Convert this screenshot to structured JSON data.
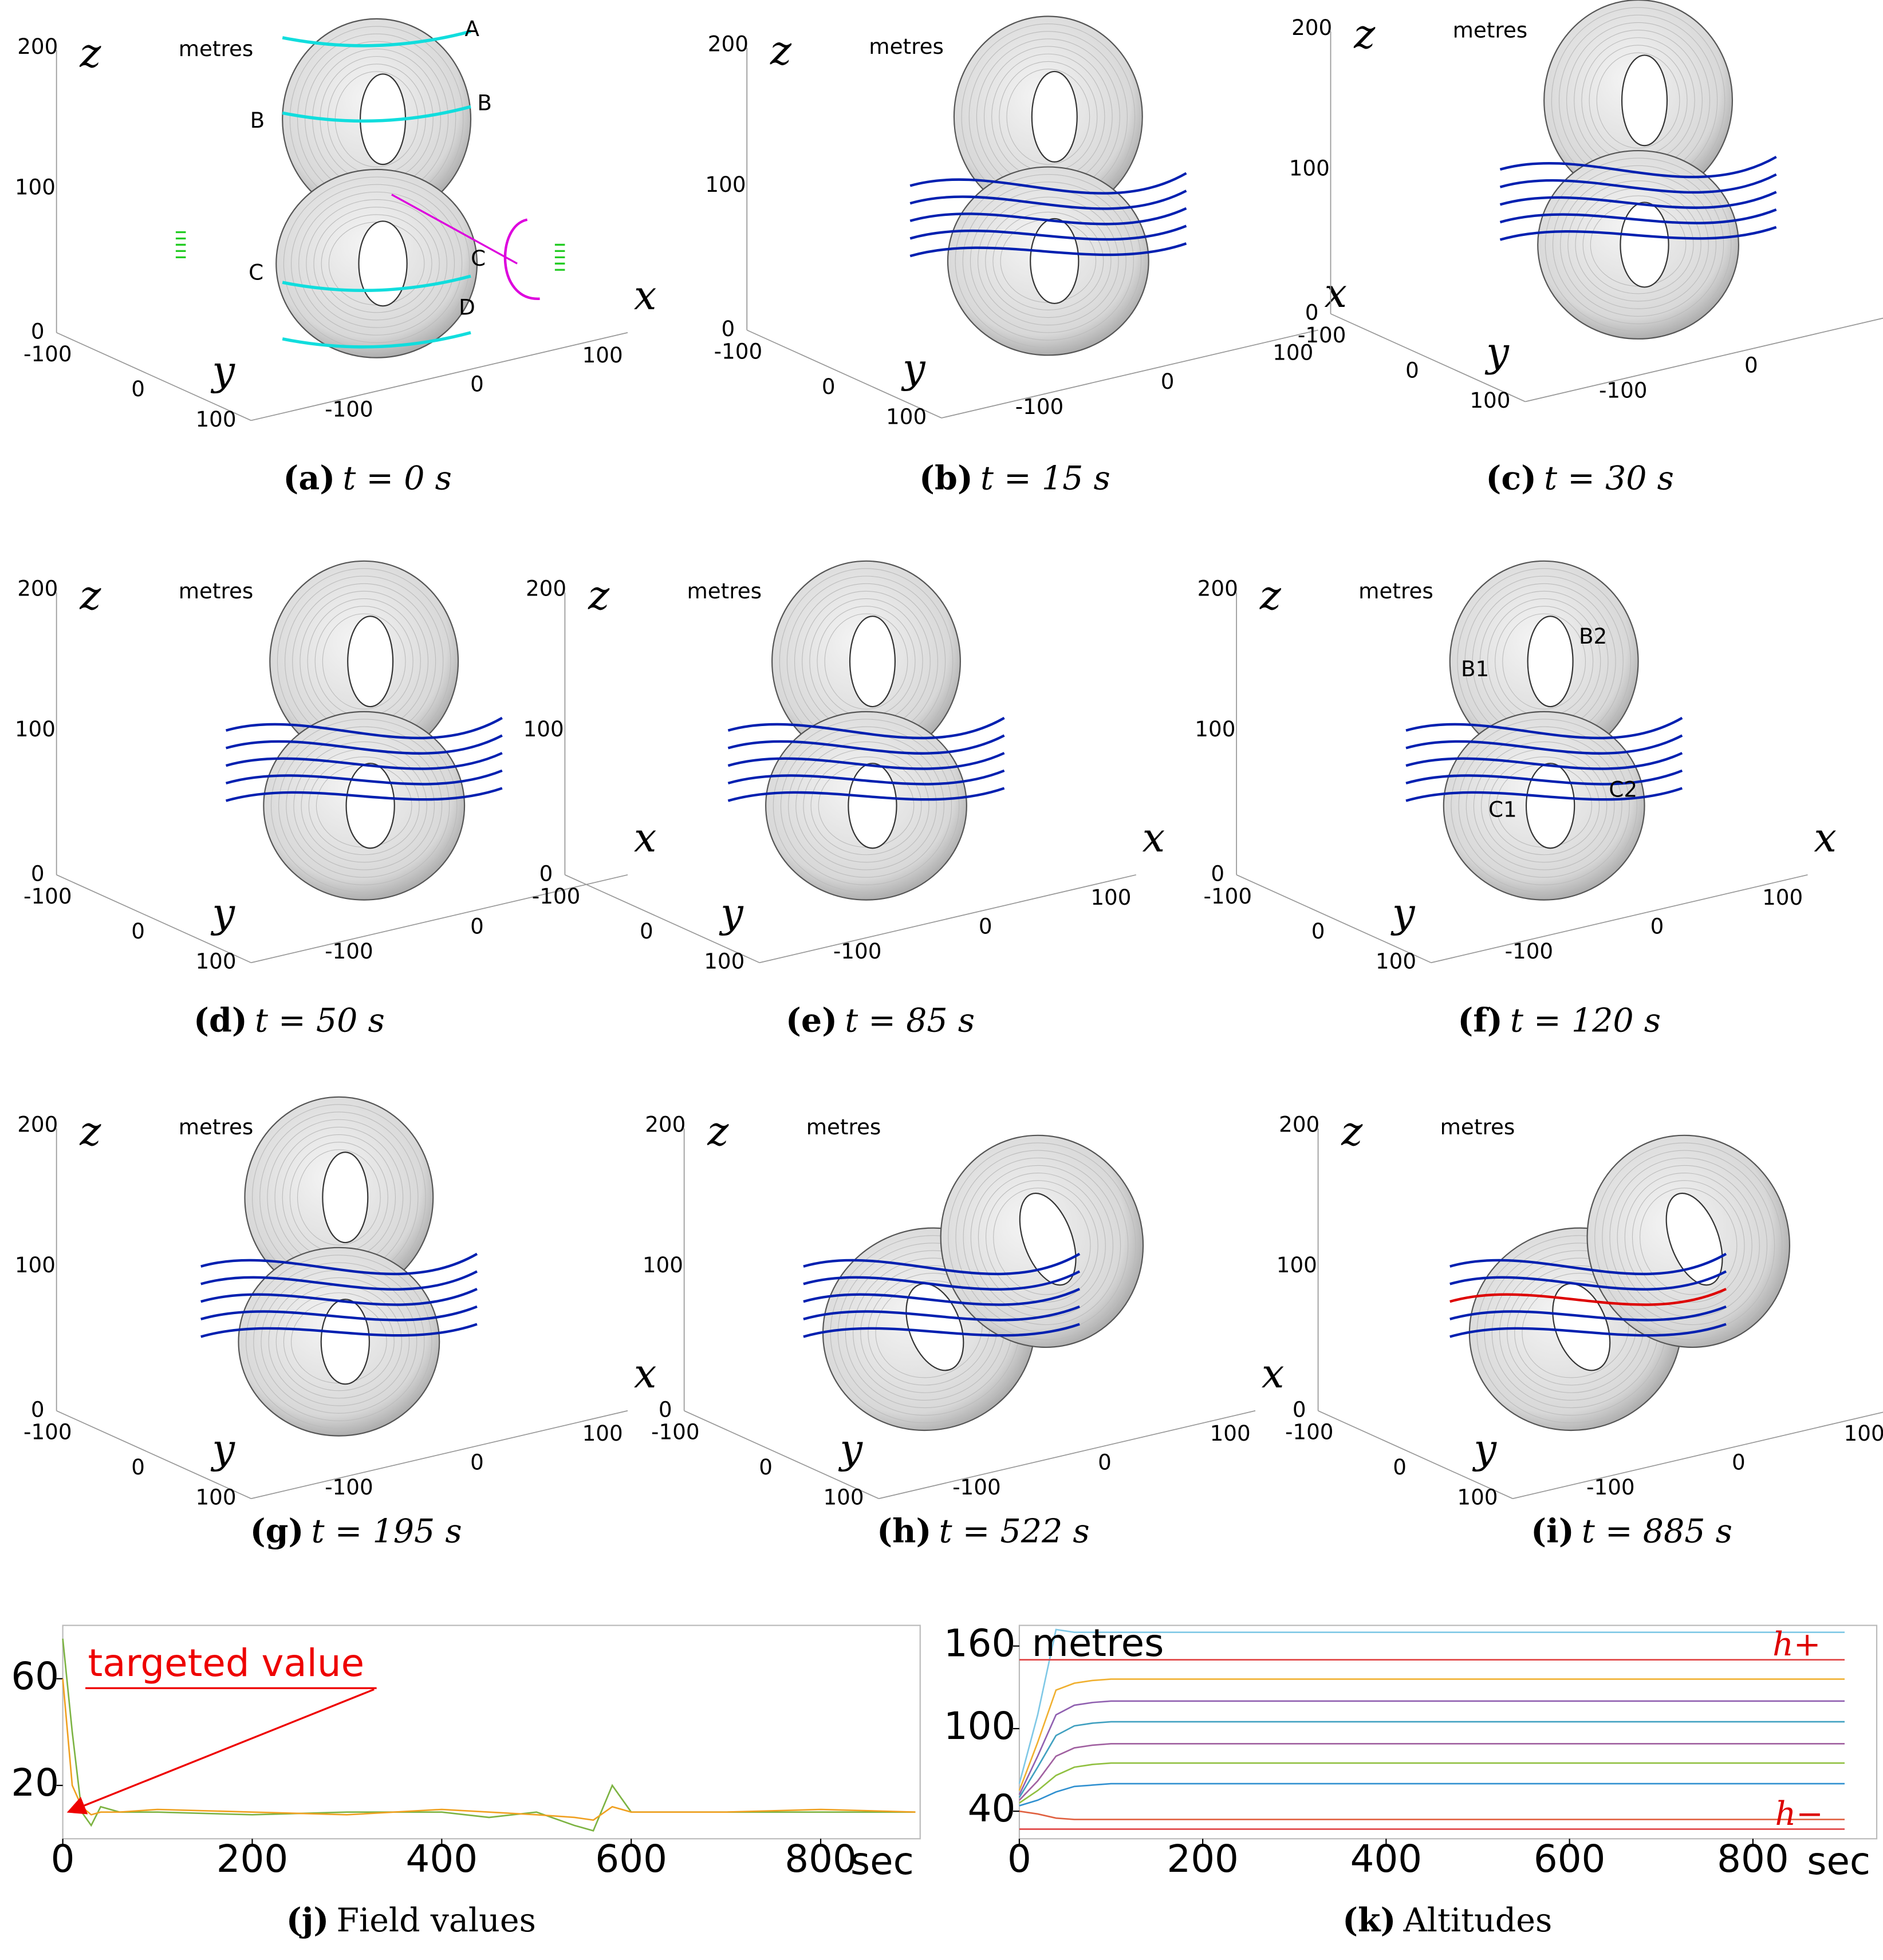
{
  "panels": [
    {
      "label": "(a)",
      "caption": "t = 0 s",
      "unit": "metres",
      "x_axis": "x",
      "y_axis": "y",
      "z_axis": "z",
      "xticks": [
        -100,
        0,
        100
      ],
      "yticks": [
        -100,
        0,
        100
      ],
      "zticks": [
        0,
        100,
        200
      ],
      "annotations": [
        "A",
        "B",
        "B",
        "C",
        "C",
        "D"
      ]
    },
    {
      "label": "(b)",
      "caption": "t = 15 s",
      "unit": "metres",
      "x_axis": "x",
      "y_axis": "y",
      "z_axis": "z",
      "xticks": [
        -100,
        0,
        100
      ],
      "yticks": [
        -100,
        0,
        100
      ],
      "zticks": [
        0,
        100,
        200
      ]
    },
    {
      "label": "(c)",
      "caption": "t = 30 s",
      "unit": "metres",
      "x_axis": "x",
      "y_axis": "y",
      "z_axis": "z",
      "xticks": [
        -100,
        0
      ],
      "yticks": [
        -100,
        0,
        100
      ],
      "zticks": [
        0,
        100,
        200
      ]
    },
    {
      "label": "(d)",
      "caption": "t = 50 s",
      "unit": "metres",
      "x_axis": "x",
      "y_axis": "y",
      "z_axis": "z",
      "xticks": [
        -100,
        0
      ],
      "yticks": [
        -100,
        0,
        100
      ],
      "zticks": [
        0,
        100,
        200
      ]
    },
    {
      "label": "(e)",
      "caption": "t = 85 s",
      "unit": "metres",
      "x_axis": "x",
      "y_axis": "y",
      "z_axis": "z",
      "xticks": [
        -100,
        0,
        100
      ],
      "yticks": [
        -100,
        0,
        100
      ],
      "zticks": [
        0,
        100,
        200
      ]
    },
    {
      "label": "(f)",
      "caption": "t = 120 s",
      "unit": "metres",
      "x_axis": "x",
      "y_axis": "y",
      "z_axis": "z",
      "xticks": [
        -100,
        0,
        100
      ],
      "yticks": [
        -100,
        0,
        100
      ],
      "zticks": [
        0,
        100,
        200
      ],
      "annotations": [
        "B1",
        "B2",
        "C1",
        "C2"
      ]
    },
    {
      "label": "(g)",
      "caption": "t = 195 s",
      "unit": "metres",
      "x_axis": "x",
      "y_axis": "y",
      "z_axis": "z",
      "xticks": [
        -100,
        0,
        100
      ],
      "yticks": [
        -100,
        0,
        100
      ],
      "zticks": [
        0,
        100,
        200
      ]
    },
    {
      "label": "(h)",
      "caption": "t = 522 s",
      "unit": "metres",
      "x_axis": "x",
      "y_axis": "y",
      "z_axis": "z",
      "xticks": [
        -100,
        0,
        100
      ],
      "yticks": [
        -100,
        0,
        100
      ],
      "zticks": [
        0,
        100,
        200
      ]
    },
    {
      "label": "(i)",
      "caption": "t = 885 s",
      "unit": "metres",
      "x_axis": "x",
      "y_axis": "y",
      "z_axis": "z",
      "xticks": [
        -100,
        0,
        100
      ],
      "yticks": [
        -100,
        0,
        100
      ],
      "zticks": [
        0,
        100,
        200
      ]
    }
  ],
  "chart_data": [
    {
      "type": "line",
      "label": "(j)",
      "caption": "Field values",
      "x_label": "sec",
      "annotation": "targeted value",
      "x": [
        0,
        10,
        20,
        30,
        40,
        60,
        100,
        200,
        300,
        400,
        450,
        500,
        540,
        560,
        580,
        600,
        700,
        800,
        900
      ],
      "series": [
        {
          "color": "#7cb342",
          "values": [
            75,
            40,
            10,
            5,
            12,
            10,
            10,
            9,
            10,
            10,
            8,
            10,
            5,
            3,
            20,
            10,
            10,
            10,
            10
          ]
        },
        {
          "color": "#f0a020",
          "values": [
            60,
            20,
            12,
            9,
            10,
            10,
            11,
            10,
            9,
            11,
            10,
            9,
            8,
            7,
            12,
            10,
            10,
            11,
            10
          ]
        }
      ],
      "xlim": [
        0,
        905
      ],
      "ylim": [
        0,
        80
      ],
      "xticks": [
        0,
        200,
        400,
        600,
        800
      ],
      "yticks": [
        20,
        60
      ]
    },
    {
      "type": "line",
      "label": "(k)",
      "caption": "Altitudes",
      "x_label": "sec",
      "annotation": "metres",
      "upper_label": "h+",
      "lower_label": "h−",
      "x": [
        0,
        20,
        40,
        60,
        80,
        100,
        150,
        900
      ],
      "series": [
        {
          "color": "#7fc8e6",
          "values": [
            60,
            110,
            172,
            170,
            170,
            170,
            170,
            170
          ]
        },
        {
          "color": "#e04040",
          "values": [
            150,
            150,
            150,
            150,
            150,
            150,
            150,
            150
          ]
        },
        {
          "color": "#f0b030",
          "values": [
            55,
            90,
            128,
            133,
            135,
            136,
            136,
            136
          ]
        },
        {
          "color": "#9060b0",
          "values": [
            52,
            80,
            110,
            117,
            119,
            120,
            120,
            120
          ]
        },
        {
          "color": "#40a0c0",
          "values": [
            50,
            72,
            95,
            102,
            104,
            105,
            105,
            105
          ]
        },
        {
          "color": "#a060a0",
          "values": [
            48,
            62,
            80,
            86,
            88,
            89,
            89,
            89
          ]
        },
        {
          "color": "#90c040",
          "values": [
            46,
            55,
            66,
            72,
            74,
            75,
            75,
            75
          ]
        },
        {
          "color": "#3090d0",
          "values": [
            44,
            48,
            54,
            58,
            59,
            60,
            60,
            60
          ]
        },
        {
          "color": "#e06040",
          "values": [
            40,
            38,
            35,
            34,
            34,
            34,
            34,
            34
          ]
        },
        {
          "color": "#e04040",
          "values": [
            27,
            27,
            27,
            27,
            27,
            27,
            27,
            27
          ]
        }
      ],
      "xlim": [
        0,
        935
      ],
      "ylim": [
        20,
        175
      ],
      "xticks": [
        0,
        200,
        400,
        600,
        800
      ],
      "yticks": [
        40,
        100,
        160
      ]
    }
  ]
}
